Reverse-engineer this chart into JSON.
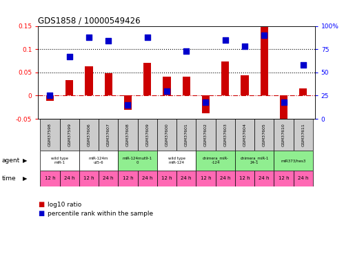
{
  "title": "GDS1858 / 10000549426",
  "samples": [
    "GSM37598",
    "GSM37599",
    "GSM37606",
    "GSM37607",
    "GSM37608",
    "GSM37609",
    "GSM37600",
    "GSM37601",
    "GSM37602",
    "GSM37603",
    "GSM37604",
    "GSM37605",
    "GSM37610",
    "GSM37611"
  ],
  "log10_ratio": [
    -0.012,
    0.033,
    0.063,
    0.048,
    -0.03,
    0.07,
    0.04,
    0.04,
    -0.038,
    0.073,
    0.043,
    0.148,
    -0.06,
    0.015
  ],
  "percentile_rank": [
    25,
    67,
    88,
    84,
    15,
    88,
    30,
    73,
    18,
    85,
    78,
    90,
    18,
    58
  ],
  "agents": [
    {
      "label": "wild type\nmiR-1",
      "span": [
        0,
        2
      ],
      "color": "#ffffff"
    },
    {
      "label": "miR-124m\nut5-6",
      "span": [
        2,
        4
      ],
      "color": "#ffffff"
    },
    {
      "label": "miR-124mut9-1\n0",
      "span": [
        4,
        6
      ],
      "color": "#90ee90"
    },
    {
      "label": "wild type\nmiR-124",
      "span": [
        6,
        8
      ],
      "color": "#ffffff"
    },
    {
      "label": "chimera_miR-\n-124",
      "span": [
        8,
        10
      ],
      "color": "#90ee90"
    },
    {
      "label": "chimera_miR-1\n24-1",
      "span": [
        10,
        12
      ],
      "color": "#90ee90"
    },
    {
      "label": "miR373/hes3",
      "span": [
        12,
        14
      ],
      "color": "#90ee90"
    }
  ],
  "times": [
    "12 h",
    "24 h",
    "12 h",
    "24 h",
    "12 h",
    "24 h",
    "12 h",
    "24 h",
    "12 h",
    "24 h",
    "12 h",
    "24 h",
    "12 h",
    "24 h"
  ],
  "time_color": "#ff69b4",
  "bar_color": "#cc0000",
  "dot_color": "#0000cc",
  "ylim_left": [
    -0.05,
    0.15
  ],
  "ylim_right": [
    0,
    100
  ],
  "yticks_left": [
    -0.05,
    0.0,
    0.05,
    0.1,
    0.15
  ],
  "yticks_right": [
    0,
    25,
    50,
    75,
    100
  ],
  "hlines": [
    0.05,
    0.1
  ],
  "background_color": "#ffffff",
  "header_bg": "#cccccc"
}
